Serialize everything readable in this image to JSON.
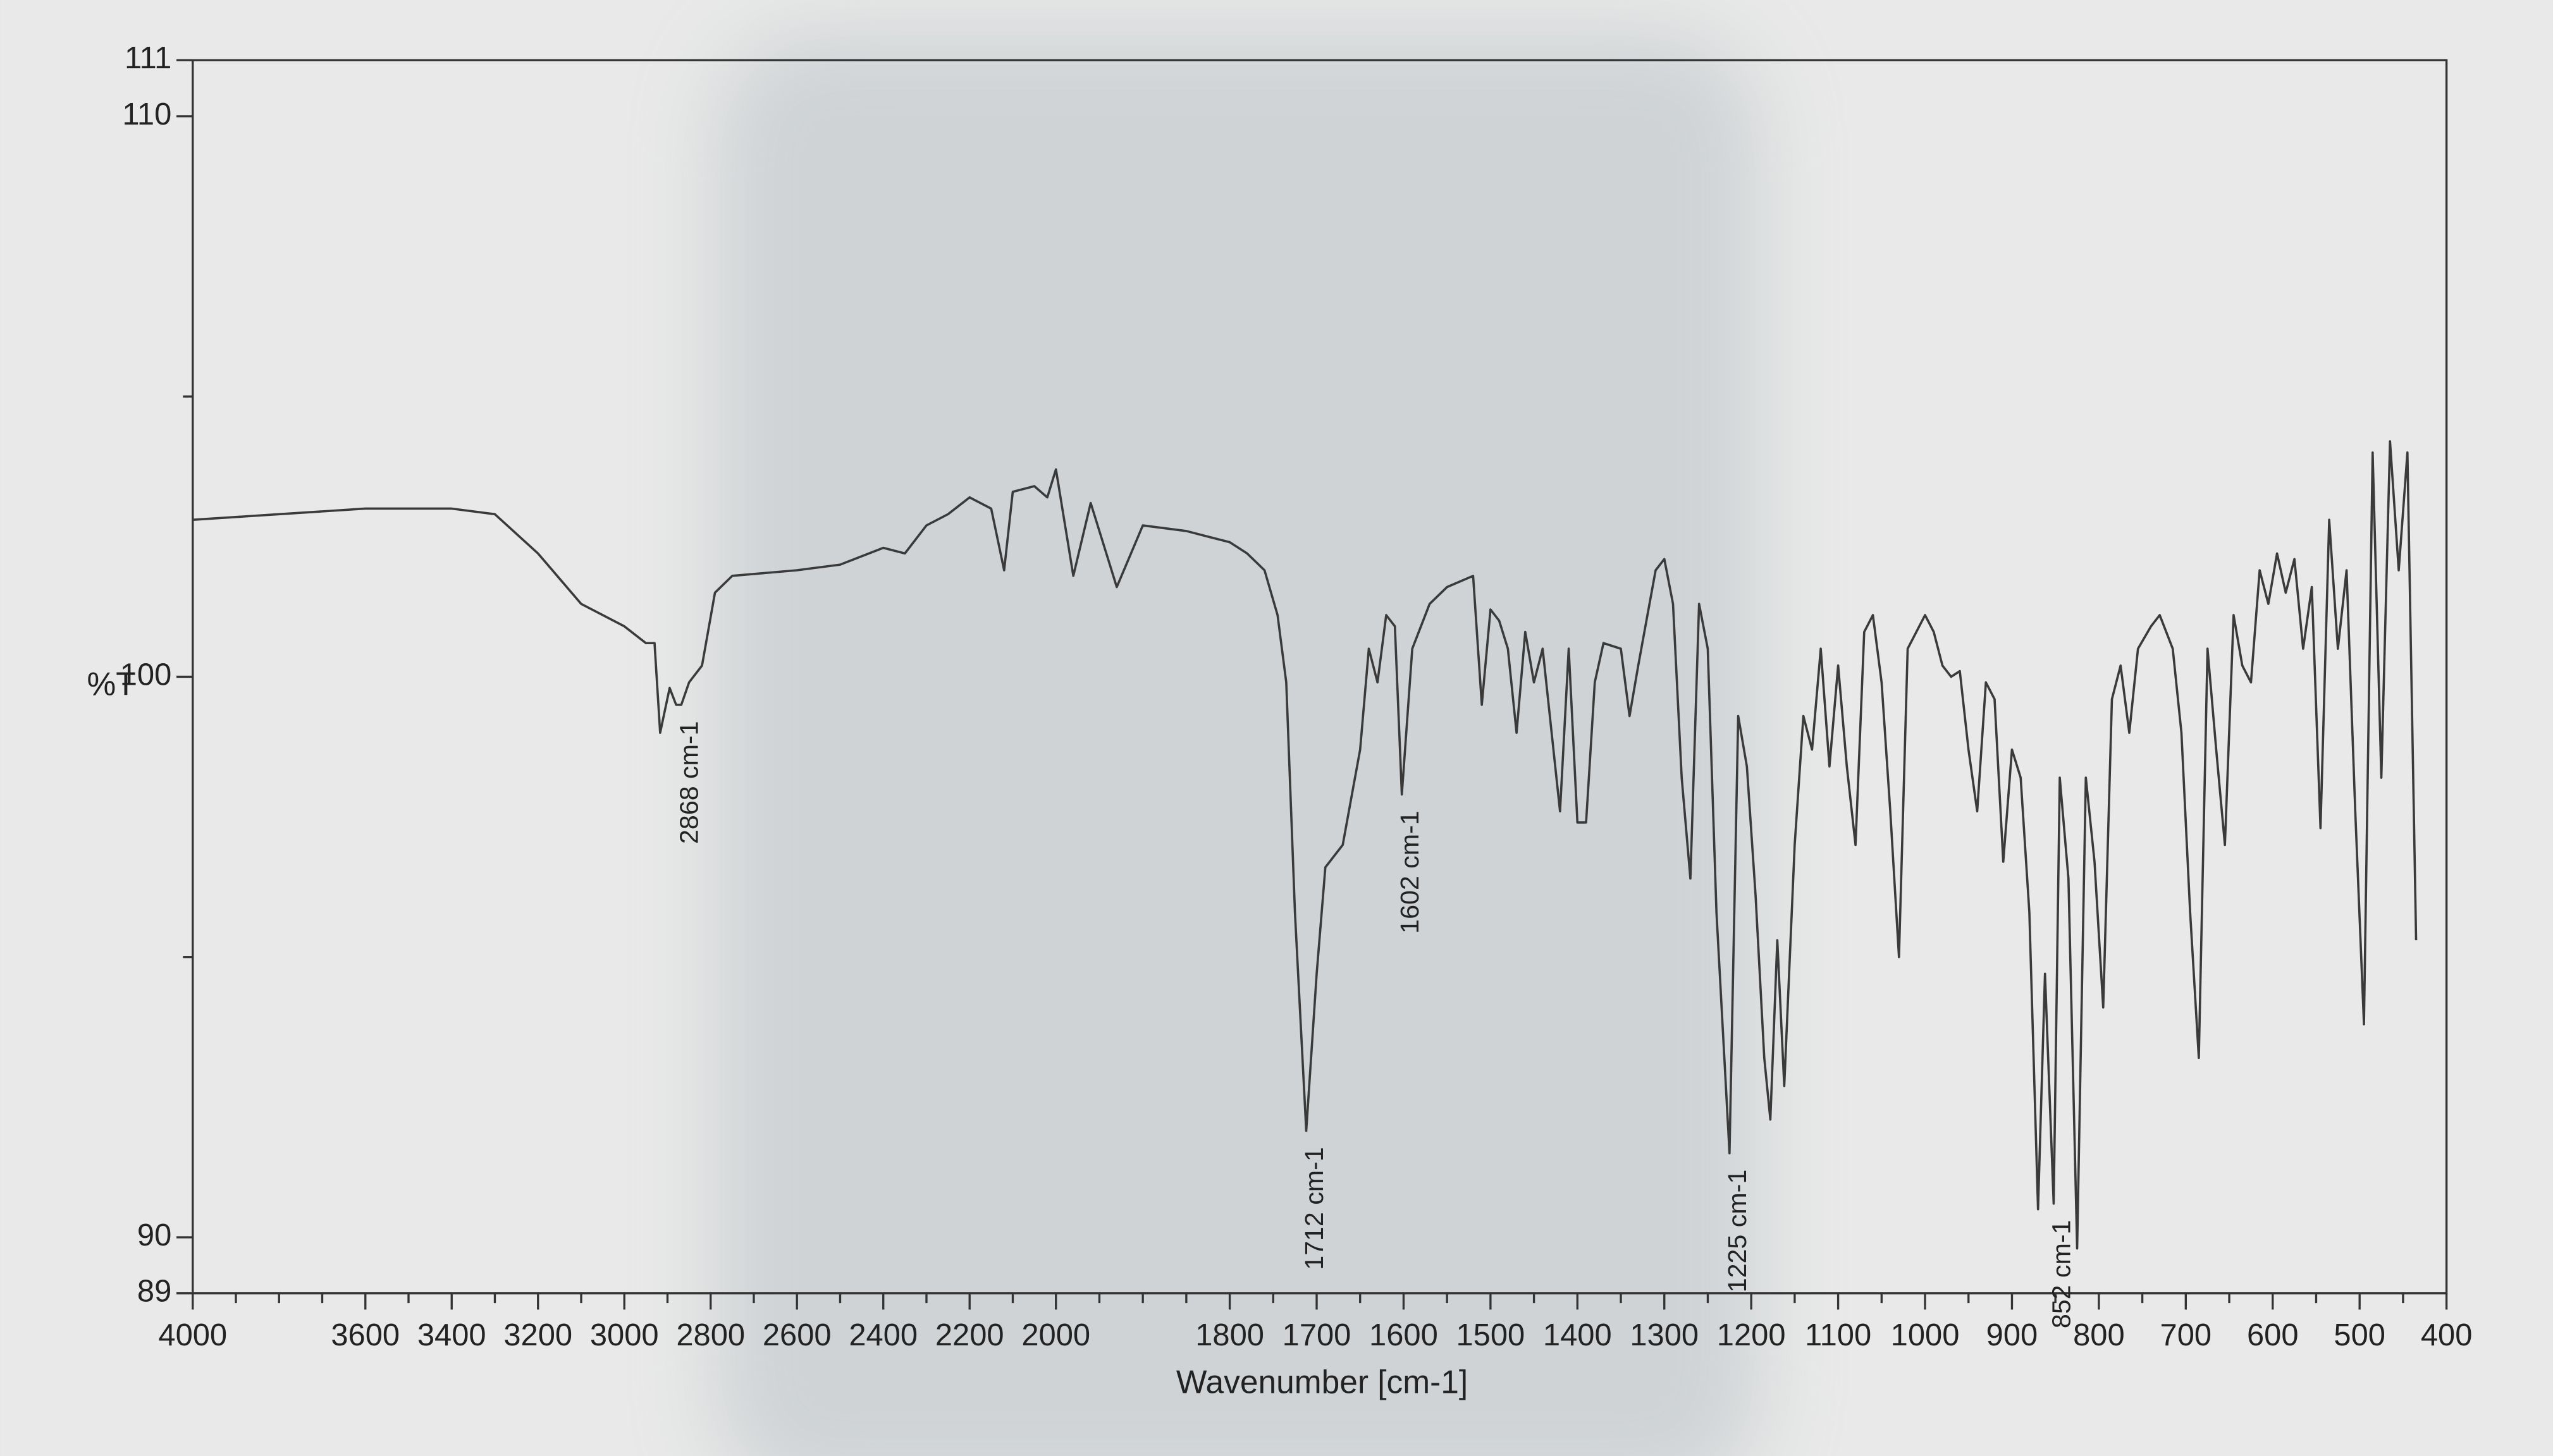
{
  "chart_data": {
    "type": "line",
    "xlabel": "Wavenumber [cm-1]",
    "ylabel": "%T",
    "xlim": [
      4000,
      400
    ],
    "x_scale_break": 2000,
    "ylim": [
      89,
      111
    ],
    "yticks": [
      89,
      90,
      100,
      110,
      111
    ],
    "yminor_ticks": [
      95,
      105
    ],
    "xticks": [
      4000,
      3600,
      3400,
      3200,
      3000,
      2800,
      2600,
      2400,
      2200,
      2000,
      1800,
      1700,
      1600,
      1500,
      1400,
      1300,
      1200,
      1100,
      1000,
      900,
      800,
      700,
      600,
      500,
      400
    ],
    "xminor_ticks": [
      3900,
      3800,
      3700,
      3500,
      3300,
      3100,
      2900,
      2700,
      2500,
      2300,
      2100,
      1900,
      1950,
      1850,
      1750,
      1650,
      1550,
      1450,
      1350,
      1250,
      1150,
      1050,
      950,
      850,
      750,
      650,
      550,
      450
    ],
    "x": [
      4000,
      3800,
      3600,
      3400,
      3300,
      3200,
      3100,
      3000,
      2950,
      2930,
      2917,
      2895,
      2880,
      2868,
      2850,
      2820,
      2790,
      2750,
      2600,
      2500,
      2400,
      2350,
      2300,
      2250,
      2200,
      2150,
      2120,
      2100,
      2050,
      2020,
      2000,
      1980,
      1960,
      1930,
      1900,
      1850,
      1800,
      1780,
      1760,
      1745,
      1735,
      1725,
      1712,
      1700,
      1690,
      1670,
      1650,
      1640,
      1630,
      1620,
      1610,
      1602,
      1590,
      1570,
      1550,
      1520,
      1510,
      1500,
      1490,
      1480,
      1470,
      1460,
      1450,
      1440,
      1420,
      1410,
      1400,
      1390,
      1380,
      1370,
      1350,
      1340,
      1330,
      1310,
      1300,
      1290,
      1280,
      1270,
      1260,
      1250,
      1240,
      1225,
      1215,
      1205,
      1195,
      1185,
      1178,
      1170,
      1162,
      1150,
      1140,
      1130,
      1120,
      1110,
      1100,
      1090,
      1080,
      1070,
      1060,
      1050,
      1040,
      1030,
      1020,
      1000,
      990,
      980,
      970,
      960,
      950,
      940,
      930,
      920,
      910,
      900,
      890,
      880,
      870,
      862,
      852,
      845,
      835,
      825,
      815,
      805,
      795,
      785,
      775,
      765,
      755,
      740,
      730,
      715,
      705,
      695,
      685,
      675,
      665,
      655,
      645,
      635,
      625,
      615,
      605,
      595,
      585,
      575,
      565,
      555,
      545,
      535,
      525,
      515,
      505,
      495,
      485,
      475,
      465,
      455,
      445,
      435
    ],
    "series": [
      {
        "color": "#3a3a3a",
        "values": [
          102.8,
          102.9,
          103.0,
          103.0,
          102.9,
          102.2,
          101.3,
          100.9,
          100.6,
          100.6,
          99.0,
          99.8,
          99.5,
          99.5,
          99.9,
          100.2,
          101.5,
          101.8,
          101.9,
          102.0,
          102.3,
          102.2,
          102.7,
          102.9,
          103.2,
          103.0,
          101.9,
          103.3,
          103.4,
          103.2,
          103.7,
          101.8,
          103.1,
          101.6,
          102.7,
          102.6,
          102.4,
          102.2,
          101.9,
          101.1,
          99.9,
          95.8,
          91.9,
          94.7,
          96.6,
          97.0,
          98.7,
          100.5,
          99.9,
          101.1,
          100.9,
          97.9,
          100.5,
          101.3,
          101.6,
          101.8,
          99.5,
          101.2,
          101.0,
          100.5,
          99.0,
          100.8,
          99.9,
          100.5,
          97.6,
          100.5,
          97.4,
          97.4,
          99.9,
          100.6,
          100.5,
          99.3,
          100.2,
          101.9,
          102.1,
          101.3,
          98.2,
          96.4,
          101.3,
          100.5,
          95.8,
          91.5,
          99.3,
          98.4,
          96.1,
          93.2,
          92.1,
          95.3,
          92.7,
          97.0,
          99.3,
          98.7,
          100.5,
          98.4,
          100.2,
          98.4,
          97.0,
          100.8,
          101.1,
          99.9,
          97.6,
          95.0,
          100.5,
          101.1,
          100.8,
          100.2,
          100.0,
          100.1,
          98.7,
          97.6,
          99.9,
          99.6,
          96.7,
          98.7,
          98.2,
          95.8,
          90.5,
          94.7,
          90.6,
          98.2,
          96.4,
          89.8,
          98.2,
          96.7,
          94.1,
          99.6,
          100.2,
          99.0,
          100.5,
          100.9,
          101.1,
          100.5,
          99.0,
          95.8,
          93.2,
          100.5,
          98.7,
          97.0,
          101.1,
          100.2,
          99.9,
          101.9,
          101.3,
          102.2,
          101.5,
          102.1,
          100.5,
          101.6,
          97.3,
          102.8,
          100.5,
          101.9,
          97.6,
          93.8,
          104.0,
          98.2,
          104.2,
          101.9,
          104.0,
          95.3
        ]
      }
    ],
    "annotations": [
      {
        "x": 2868,
        "text": "2868 cm-1"
      },
      {
        "x": 1712,
        "text": "1712 cm-1"
      },
      {
        "x": 1602,
        "text": "1602 cm-1"
      },
      {
        "x": 1225,
        "text": "1225 cm-1"
      },
      {
        "x": 852,
        "text": "852 cm-1"
      }
    ]
  }
}
